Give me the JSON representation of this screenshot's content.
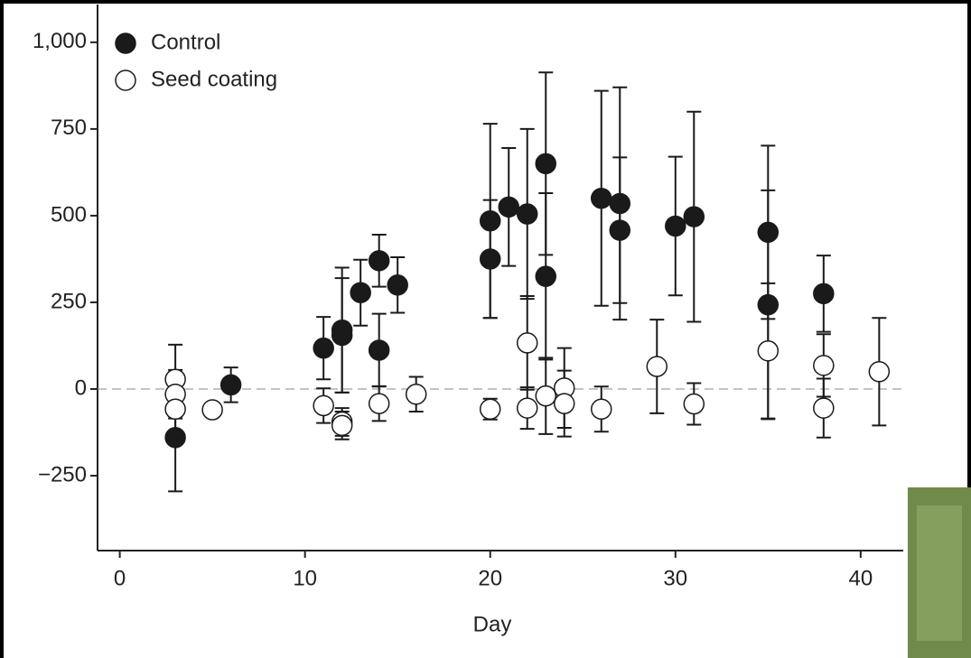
{
  "chart_data": {
    "type": "scatter",
    "x_label": "Day",
    "xlim": [
      -1.2,
      42.3
    ],
    "ylim": [
      -466,
      1109
    ],
    "xticks": [
      0,
      10,
      20,
      30,
      40
    ],
    "yticks": [
      {
        "value": -250,
        "label": "−250"
      },
      0,
      250,
      500,
      750,
      {
        "value": 1000,
        "label": "1,000"
      }
    ],
    "legend": "upper left",
    "series": [
      {
        "name": "Control",
        "color": "#1a1a1a",
        "filled": true,
        "x": [
          3,
          6,
          11,
          12,
          12,
          13,
          14,
          14,
          15,
          20,
          20,
          21,
          22,
          23,
          23,
          26,
          27,
          27,
          30,
          31,
          35,
          35,
          38
        ],
        "values": [
          -140,
          12,
          118,
          170,
          155,
          278,
          370,
          112,
          300,
          485,
          375,
          525,
          505,
          650,
          325,
          550,
          535,
          458,
          470,
          497,
          452,
          243,
          275
        ],
        "errors": [
          155,
          50,
          90,
          180,
          165,
          95,
          75,
          105,
          80,
          280,
          170,
          170,
          245,
          263,
          240,
          310,
          335,
          210,
          200,
          303,
          250,
          330,
          110
        ]
      },
      {
        "name": "Seed coating",
        "color": "#1a1a1a",
        "filled": false,
        "x": [
          3,
          3,
          3,
          5,
          11,
          12,
          12,
          14,
          16,
          20,
          22,
          22,
          23,
          24,
          24,
          26,
          29,
          31,
          35,
          38,
          38,
          41
        ],
        "values": [
          28,
          -15,
          -58,
          -60,
          -48,
          -95,
          -105,
          -42,
          -15,
          -58,
          133,
          -55,
          -20,
          3,
          -42,
          -58,
          65,
          -43,
          110,
          68,
          -55,
          50
        ],
        "errors": [
          100,
          70,
          70,
          20,
          50,
          40,
          40,
          50,
          50,
          30,
          135,
          60,
          110,
          115,
          95,
          65,
          135,
          60,
          195,
          90,
          85,
          155
        ]
      }
    ]
  }
}
